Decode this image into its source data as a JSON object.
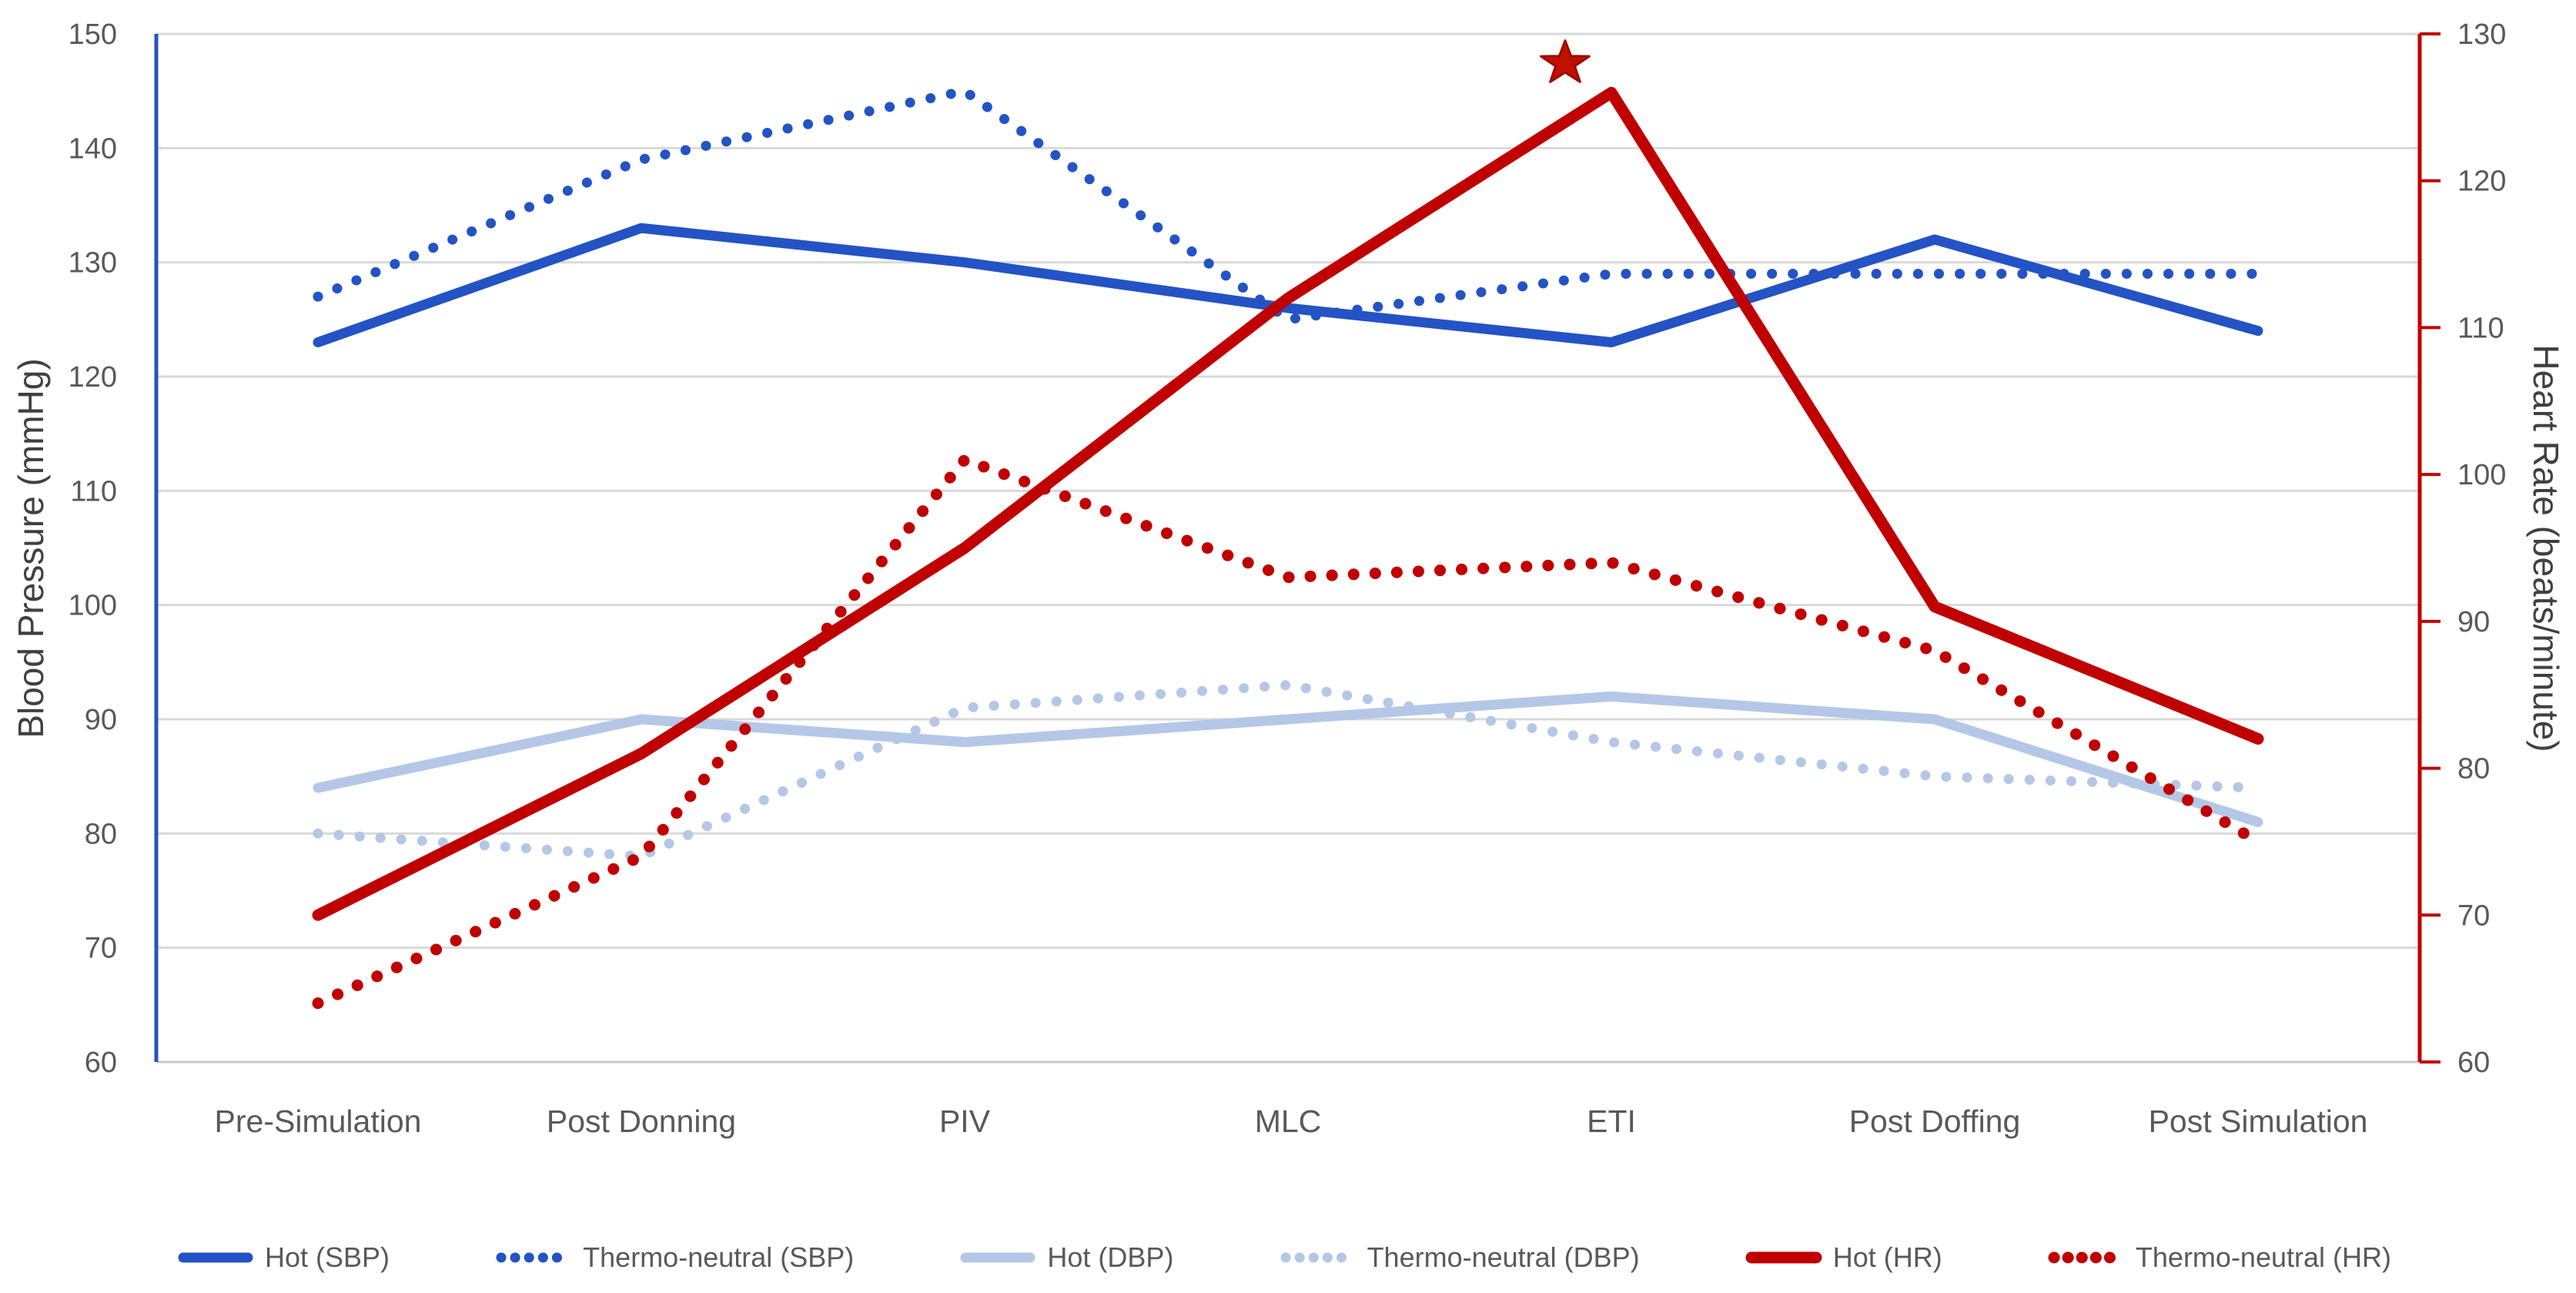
{
  "chart_data": {
    "type": "line",
    "title": "",
    "categories": [
      "Pre-Simulation",
      "Post Donning",
      "PIV",
      "MLC",
      "ETI",
      "Post Doffing",
      "Post Simulation"
    ],
    "series": [
      {
        "name": "Hot (SBP)",
        "axis": "left",
        "style": "solid",
        "color_key": "dark_blue",
        "values": [
          123,
          133,
          130,
          126,
          123,
          132,
          124
        ]
      },
      {
        "name": "Thermo-neutral (SBP)",
        "axis": "left",
        "style": "dotted",
        "color_key": "dark_blue",
        "values": [
          127,
          139,
          145,
          125,
          129,
          129,
          129
        ]
      },
      {
        "name": "Hot (DBP)",
        "axis": "left",
        "style": "solid",
        "color_key": "light_blue",
        "values": [
          84,
          90,
          88,
          90,
          92,
          90,
          81
        ]
      },
      {
        "name": "Thermo-neutral (DBP)",
        "axis": "left",
        "style": "dotted",
        "color_key": "light_blue",
        "values": [
          80,
          78,
          91,
          93,
          88,
          85,
          84
        ]
      },
      {
        "name": "Hot (HR)",
        "axis": "right",
        "style": "solid",
        "color_key": "red",
        "values": [
          70,
          81,
          95,
          112,
          126,
          91,
          82
        ]
      },
      {
        "name": "Thermo-neutral (HR)",
        "axis": "right",
        "style": "dotted",
        "color_key": "red",
        "values": [
          64,
          74,
          101,
          93,
          94,
          88,
          75
        ]
      }
    ],
    "ylabel_left": "Blood Pressure (mmHg)",
    "ylabel_right": "Heart Rate (beats/minute)",
    "xlabel": "",
    "y_left": {
      "min": 60,
      "max": 150,
      "step": 10,
      "tick_labels": [
        "150",
        "140",
        "130",
        "120",
        "110",
        "100",
        "90",
        "80",
        "70",
        "60"
      ]
    },
    "y_right": {
      "min": 60,
      "max": 130,
      "step": 10,
      "tick_labels": [
        "130",
        "120",
        "110",
        "100",
        "90",
        "80",
        "70",
        "60"
      ]
    },
    "grid": true,
    "legend_position": "bottom",
    "annotation": {
      "symbol": "star",
      "color": "#C00000",
      "near_category": "ETI",
      "above_series": "Hot (HR)"
    }
  },
  "colors": {
    "dark_blue": "#2353C4",
    "light_blue": "#B4C7E7",
    "red": "#C00000",
    "grid": "#D9D9D9",
    "bottom_axis": "#C9C9C9",
    "left_axis": "#2353C4",
    "right_axis": "#C00000",
    "tick_text": "#595959",
    "axis_title_text": "#404040",
    "star_fill": "#C11000",
    "star_stroke": "#9E0B00"
  }
}
